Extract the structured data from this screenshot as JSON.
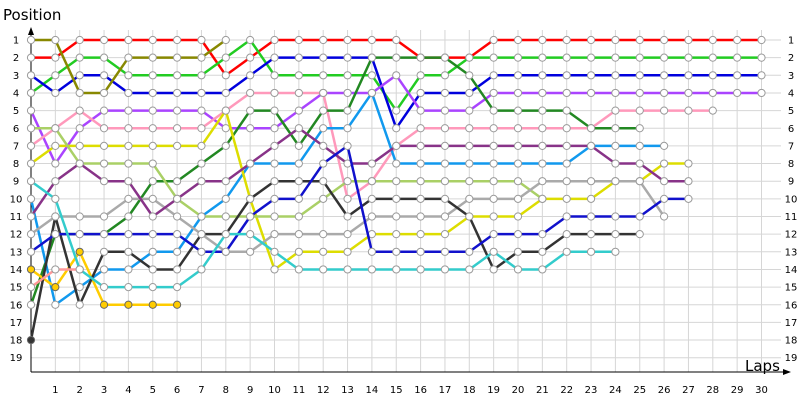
{
  "chart_data": {
    "type": "line",
    "xlabel": "Laps",
    "ylabel": "Position",
    "x_ticks": [
      1,
      2,
      3,
      4,
      5,
      6,
      7,
      8,
      9,
      10,
      11,
      12,
      13,
      14,
      15,
      16,
      17,
      18,
      19,
      20,
      21,
      22,
      23,
      24,
      25,
      26,
      27,
      28,
      29,
      30
    ],
    "y_ticks": [
      1,
      2,
      3,
      4,
      5,
      6,
      7,
      8,
      9,
      10,
      11,
      12,
      13,
      14,
      15,
      16,
      17,
      18,
      19
    ],
    "xlim": [
      0,
      31
    ],
    "ylim": [
      1,
      19
    ],
    "y_inverted": true,
    "grid": true,
    "series": [
      {
        "color": "#ff0000",
        "values": [
          2,
          2,
          1,
          1,
          1,
          1,
          1,
          1,
          3,
          2,
          1,
          1,
          1,
          1,
          1,
          1,
          2,
          2,
          2,
          1,
          1,
          1,
          1,
          1,
          1,
          1,
          1,
          1,
          1,
          1,
          1
        ]
      },
      {
        "color": "#22cc22",
        "values": [
          4,
          3,
          2,
          2,
          3,
          3,
          3,
          3,
          2,
          1,
          3,
          3,
          3,
          3,
          3,
          5,
          3,
          3,
          2,
          2,
          2,
          2,
          2,
          2,
          2,
          2,
          2,
          2,
          2,
          2,
          2
        ]
      },
      {
        "color": "#0000dd",
        "values": [
          3,
          4,
          3,
          3,
          4,
          4,
          4,
          4,
          4,
          3,
          2,
          2,
          2,
          2,
          2,
          6,
          4,
          4,
          4,
          3,
          3,
          3,
          3,
          3,
          3,
          3,
          3,
          3,
          3,
          3,
          3
        ]
      },
      {
        "color": "#888800",
        "values": [
          1,
          1,
          4,
          4,
          2,
          2,
          2,
          2,
          1,
          null,
          null,
          null,
          null,
          null,
          null,
          null,
          null,
          null,
          null,
          null,
          null,
          null,
          null,
          null,
          null,
          null,
          null,
          null,
          null,
          null,
          null
        ]
      },
      {
        "color": "#aa44ff",
        "values": [
          5,
          8,
          6,
          5,
          5,
          5,
          5,
          5,
          6,
          6,
          6,
          5,
          4,
          4,
          4,
          3,
          5,
          5,
          5,
          4,
          4,
          4,
          4,
          4,
          4,
          4,
          4,
          4,
          4,
          4,
          4
        ]
      },
      {
        "color": "#ff99bb",
        "values": [
          7,
          6,
          5,
          6,
          6,
          6,
          6,
          6,
          5,
          4,
          4,
          4,
          4,
          10,
          9,
          7,
          6,
          6,
          6,
          6,
          6,
          6,
          6,
          6,
          5,
          5,
          5,
          5,
          5,
          null,
          null
        ]
      },
      {
        "color": "#228822",
        "values": [
          16,
          12,
          12,
          12,
          11,
          9,
          9,
          8,
          7,
          5,
          5,
          7,
          5,
          5,
          2,
          2,
          2,
          2,
          3,
          5,
          5,
          5,
          5,
          6,
          6,
          6,
          null,
          null,
          null,
          null,
          null
        ]
      },
      {
        "color": "#1199ee",
        "values": [
          10,
          16,
          15,
          14,
          14,
          13,
          13,
          11,
          10,
          8,
          8,
          8,
          6,
          6,
          4,
          8,
          8,
          8,
          8,
          8,
          8,
          8,
          8,
          7,
          7,
          7,
          7,
          null,
          null,
          null,
          null
        ]
      },
      {
        "color": "#ffcc00",
        "values": [
          14,
          15,
          13,
          16,
          16,
          16,
          16,
          null,
          null,
          null,
          null,
          null,
          null,
          null,
          null,
          null,
          null,
          null,
          null,
          null,
          null,
          null,
          null,
          null,
          null,
          null,
          null,
          null,
          null,
          null,
          null
        ]
      },
      {
        "color": "#dddd00",
        "values": [
          8,
          7,
          7,
          7,
          7,
          7,
          7,
          7,
          5,
          10,
          14,
          13,
          13,
          13,
          12,
          12,
          12,
          12,
          11,
          11,
          11,
          10,
          10,
          10,
          9,
          9,
          8,
          8,
          null,
          null,
          null
        ]
      },
      {
        "color": "#aad066",
        "values": [
          6,
          6,
          8,
          8,
          8,
          8,
          10,
          11,
          11,
          11,
          11,
          11,
          10,
          9,
          9,
          9,
          9,
          9,
          9,
          9,
          9,
          10,
          null,
          null,
          null,
          null,
          null,
          null,
          null,
          null,
          null
        ]
      },
      {
        "color": "#aaaaaa",
        "values": [
          12,
          11,
          11,
          11,
          10,
          10,
          11,
          12,
          13,
          13,
          12,
          12,
          12,
          12,
          11,
          11,
          11,
          11,
          10,
          10,
          10,
          9,
          9,
          9,
          9,
          9,
          11,
          null,
          null,
          null,
          null
        ]
      },
      {
        "color": "#333333",
        "values": [
          18,
          11,
          16,
          13,
          13,
          14,
          14,
          12,
          12,
          10,
          9,
          9,
          9,
          11,
          10,
          10,
          10,
          10,
          11,
          14,
          13,
          13,
          12,
          12,
          12,
          12,
          null,
          null,
          null,
          null,
          null
        ]
      },
      {
        "color": "#883388",
        "values": [
          11,
          9,
          8,
          9,
          9,
          11,
          10,
          9,
          9,
          8,
          7,
          6,
          7,
          8,
          8,
          7,
          7,
          7,
          7,
          7,
          7,
          7,
          7,
          7,
          8,
          8,
          9,
          9,
          null,
          null,
          null
        ]
      },
      {
        "color": "#1111cc",
        "values": [
          13,
          12,
          12,
          12,
          12,
          12,
          12,
          13,
          13,
          11,
          10,
          10,
          8,
          7,
          13,
          13,
          13,
          13,
          13,
          12,
          12,
          12,
          11,
          11,
          11,
          11,
          10,
          10,
          null,
          null,
          null
        ]
      },
      {
        "color": "#33cccc",
        "values": [
          9,
          10,
          14,
          15,
          15,
          15,
          15,
          14,
          12,
          12,
          13,
          14,
          14,
          14,
          14,
          14,
          14,
          14,
          14,
          13,
          14,
          14,
          13,
          13,
          13,
          null,
          null,
          null,
          null,
          null,
          null
        ]
      },
      {
        "color": "#ff9999",
        "values": [
          15,
          14,
          14,
          null,
          null,
          null,
          null,
          null,
          null,
          null,
          null,
          null,
          null,
          null,
          null,
          null,
          null,
          null,
          null,
          null,
          null,
          null,
          null,
          null,
          null,
          null,
          null,
          null,
          null,
          null,
          null
        ]
      }
    ]
  }
}
